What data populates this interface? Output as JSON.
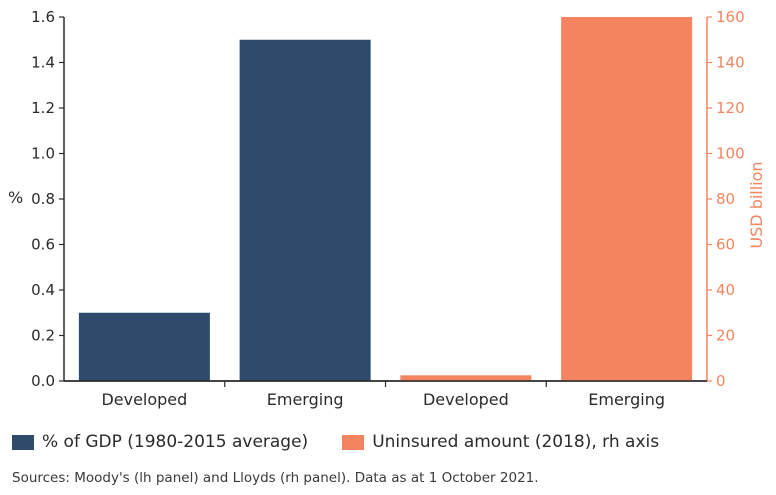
{
  "chart_data": {
    "type": "bar",
    "categories": [
      "Developed",
      "Emerging",
      "Developed",
      "Emerging"
    ],
    "series": [
      {
        "name": "% of GDP (1980-2015 average)",
        "axis": "left",
        "values": [
          0.3,
          1.5,
          null,
          null
        ],
        "color": "#2f4a6b"
      },
      {
        "name": "Uninsured amount (2018), rh axis",
        "axis": "right",
        "values": [
          null,
          null,
          2.5,
          160
        ],
        "color": "#f4845f"
      }
    ],
    "ylabel_left": "%",
    "ylabel_right": "USD billion",
    "ylim_left": [
      0,
      1.6
    ],
    "ylim_right": [
      0,
      160
    ],
    "yticks_left": [
      "0.0",
      "0.2",
      "0.4",
      "0.6",
      "0.8",
      "1.0",
      "1.2",
      "1.4",
      "1.6"
    ],
    "yticks_right": [
      "0",
      "20",
      "40",
      "60",
      "80",
      "100",
      "120",
      "140",
      "160"
    ],
    "grid": false,
    "legend_position": "bottom"
  },
  "legend": [
    {
      "label": "% of GDP (1980-2015 average)",
      "color": "#2f4a6b"
    },
    {
      "label": "Uninsured amount (2018), rh axis",
      "color": "#f4845f"
    }
  ],
  "source": "Sources: Moody's (lh panel) and Lloyds (rh panel). Data as at 1 October 2021."
}
